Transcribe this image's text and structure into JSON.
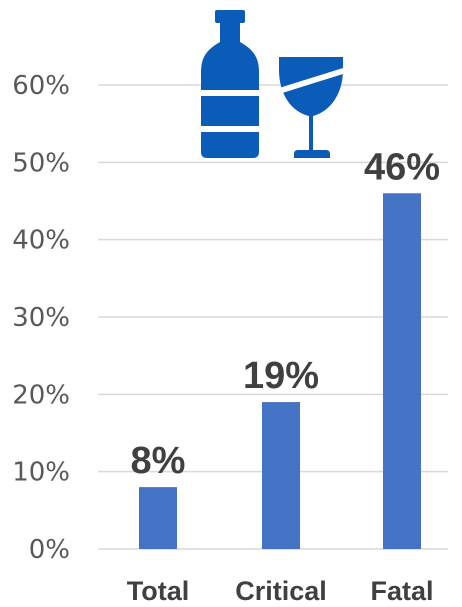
{
  "chart_data": {
    "type": "bar",
    "categories": [
      "Total",
      "Critical",
      "Fatal"
    ],
    "values": [
      8,
      19,
      46
    ],
    "data_labels": [
      "8%",
      "19%",
      "46%"
    ],
    "ylim": [
      0,
      60
    ],
    "yticks": [
      0,
      10,
      20,
      30,
      40,
      50,
      60
    ],
    "ytick_labels": [
      "0%",
      "10%",
      "20%",
      "30%",
      "40%",
      "50%",
      "60%"
    ],
    "grid": true,
    "legend": "none",
    "bar_color": "#4472c4"
  },
  "icons": {
    "bottle": "bottle-icon",
    "glass": "wine-glass-icon",
    "color": "#0a5cb8"
  }
}
